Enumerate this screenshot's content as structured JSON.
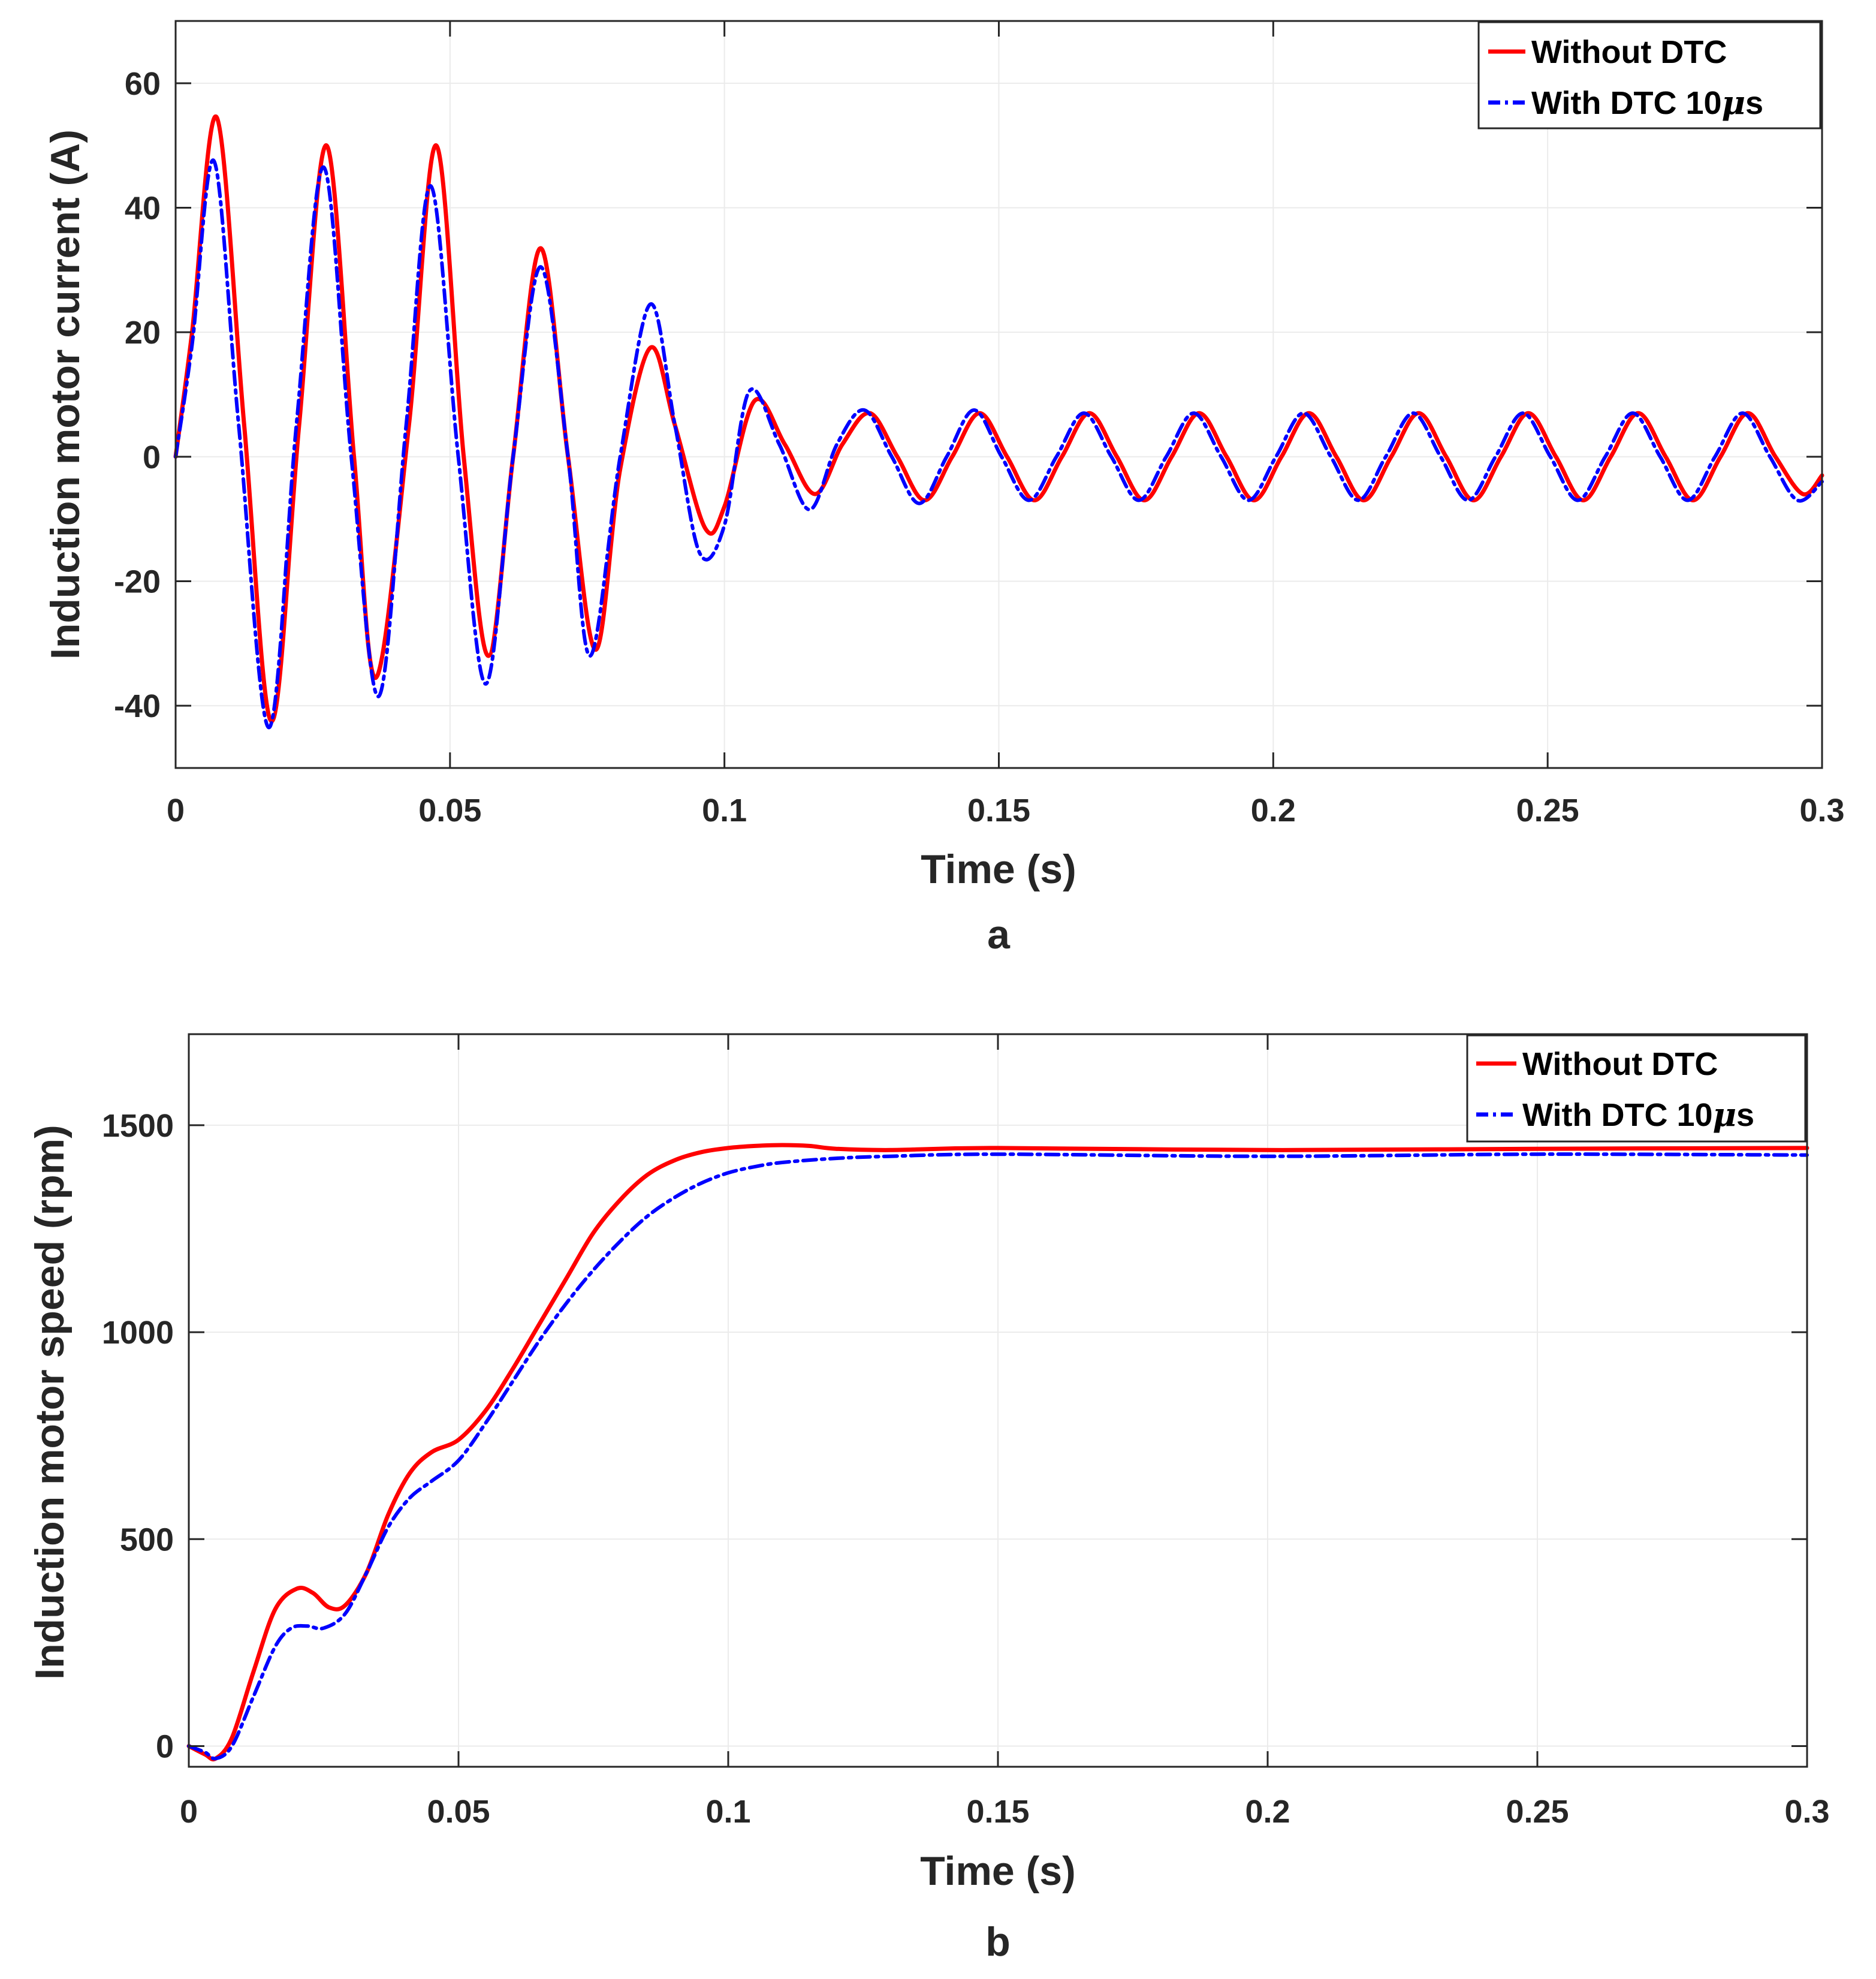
{
  "figure": {
    "captions": [
      "a",
      "b"
    ]
  },
  "colors": {
    "without_dtc": "#ff0000",
    "with_dtc": "#0000ff",
    "axis": "#262626",
    "grid": "#ebebeb"
  },
  "chart_data": [
    {
      "type": "line",
      "caption": "a",
      "title": "",
      "xlabel": "Time (s)",
      "ylabel": "Induction motor current (A)",
      "xlim": [
        0,
        0.3
      ],
      "ylim": [
        -50,
        70
      ],
      "xticks": [
        0,
        0.05,
        0.1,
        0.15,
        0.2,
        0.25,
        0.3
      ],
      "xtick_labels": [
        "0",
        "0.05",
        "0.1",
        "0.15",
        "0.2",
        "0.25",
        "0.3"
      ],
      "yticks": [
        -40,
        -20,
        0,
        20,
        40,
        60
      ],
      "ytick_labels": [
        "-40",
        "-20",
        "0",
        "20",
        "40",
        "60"
      ],
      "grid": true,
      "legend_position": "top-right",
      "legend": [
        "Without DTC",
        "With DTC 10"
      ],
      "legend_mu": "μ",
      "legend_mu_suffix": "s",
      "series": [
        {
          "name": "Without DTC",
          "style": "solid",
          "x": [
            0,
            0.003,
            0.0075,
            0.0125,
            0.0175,
            0.0225,
            0.0275,
            0.0325,
            0.0365,
            0.0425,
            0.0475,
            0.0525,
            0.057,
            0.0615,
            0.0665,
            0.0715,
            0.0765,
            0.081,
            0.0865,
            0.091,
            0.0965,
            0.1,
            0.1055,
            0.111,
            0.1165,
            0.1215,
            0.1265,
            0.1315,
            0.1365,
            0.1415,
            0.1465,
            0.1515,
            0.1565,
            0.1615,
            0.1665,
            0.1715,
            0.1765,
            0.1815,
            0.1865,
            0.1915,
            0.1965,
            0.2015,
            0.2065,
            0.2115,
            0.2165,
            0.2215,
            0.2265,
            0.2315,
            0.2365,
            0.2415,
            0.2465,
            0.2515,
            0.2565,
            0.2615,
            0.2665,
            0.2715,
            0.2765,
            0.2815,
            0.2865,
            0.2915,
            0.2965,
            0.3
          ],
          "values": [
            0,
            20,
            54.5,
            5,
            -42.5,
            5,
            50,
            0,
            -35.5,
            5,
            50,
            0,
            -32,
            0,
            33.5,
            0,
            -31,
            -2,
            17.5,
            5,
            -11.5,
            -8,
            9,
            2,
            -6,
            2,
            7,
            0,
            -7,
            0,
            7,
            0,
            -7,
            0,
            7,
            0,
            -7,
            0,
            7,
            0,
            -7,
            0,
            7,
            0,
            -7,
            0,
            7,
            0,
            -7,
            0,
            7,
            0,
            -7,
            0,
            7,
            0,
            -7,
            0,
            7,
            0,
            -6,
            -3
          ]
        },
        {
          "name": "With DTC 10μs",
          "style": "dashdot",
          "x": [
            0,
            0.003,
            0.007,
            0.0115,
            0.017,
            0.022,
            0.027,
            0.032,
            0.037,
            0.042,
            0.0465,
            0.0515,
            0.0565,
            0.0615,
            0.0665,
            0.0715,
            0.0755,
            0.081,
            0.0865,
            0.091,
            0.0955,
            0.1,
            0.1045,
            0.11,
            0.1155,
            0.1205,
            0.1255,
            0.1305,
            0.1355,
            0.1405,
            0.1455,
            0.1505,
            0.1555,
            0.1605,
            0.1655,
            0.1705,
            0.1755,
            0.1805,
            0.1855,
            0.1905,
            0.1955,
            0.2005,
            0.2055,
            0.2105,
            0.2155,
            0.2205,
            0.2255,
            0.2305,
            0.2355,
            0.2405,
            0.2455,
            0.2505,
            0.2555,
            0.2605,
            0.2655,
            0.2705,
            0.2755,
            0.2805,
            0.2855,
            0.2905,
            0.2955,
            0.3
          ],
          "values": [
            0,
            18,
            47.5,
            5,
            -43.5,
            5,
            46.5,
            0,
            -38.5,
            5,
            43.5,
            0,
            -36.5,
            0,
            30.5,
            0,
            -32,
            0,
            24.5,
            5,
            -15.5,
            -11,
            10.5,
            2,
            -8.5,
            2,
            7.5,
            0,
            -7.5,
            0,
            7.5,
            0,
            -7,
            0,
            7,
            0,
            -7,
            0,
            7,
            0,
            -7,
            0,
            7,
            0,
            -7,
            0,
            7,
            0,
            -7,
            0,
            7,
            0,
            -7,
            0,
            7,
            0,
            -7,
            0,
            7,
            0,
            -7,
            -4
          ]
        }
      ]
    },
    {
      "type": "line",
      "caption": "b",
      "title": "",
      "xlabel": "Time (s)",
      "ylabel": "Induction motor speed (rpm)",
      "xlim": [
        0,
        0.3
      ],
      "ylim": [
        -50,
        1720
      ],
      "xticks": [
        0,
        0.05,
        0.1,
        0.15,
        0.2,
        0.25,
        0.3
      ],
      "xtick_labels": [
        "0",
        "0.05",
        "0.1",
        "0.15",
        "0.2",
        "0.25",
        "0.3"
      ],
      "yticks": [
        0,
        500,
        1000,
        1500
      ],
      "ytick_labels": [
        "0",
        "500",
        "1000",
        "1500"
      ],
      "grid": true,
      "legend_position": "top-right",
      "legend": [
        "Without DTC",
        "With DTC 10"
      ],
      "legend_mu": "μ",
      "legend_mu_suffix": "s",
      "series": [
        {
          "name": "Without DTC",
          "style": "solid",
          "x": [
            0,
            0.003,
            0.005,
            0.008,
            0.012,
            0.016,
            0.02,
            0.023,
            0.026,
            0.029,
            0.033,
            0.037,
            0.041,
            0.045,
            0.05,
            0.055,
            0.06,
            0.065,
            0.07,
            0.075,
            0.08,
            0.085,
            0.09,
            0.095,
            0.1,
            0.105,
            0.11,
            0.115,
            0.12,
            0.13,
            0.15,
            0.2,
            0.25,
            0.3
          ],
          "values": [
            0,
            -20,
            -30,
            20,
            180,
            330,
            380,
            370,
            335,
            340,
            420,
            560,
            660,
            710,
            740,
            810,
            910,
            1020,
            1130,
            1240,
            1320,
            1380,
            1415,
            1435,
            1445,
            1450,
            1452,
            1450,
            1443,
            1440,
            1445,
            1440,
            1443,
            1445
          ]
        },
        {
          "name": "With DTC 10μs",
          "style": "dashdot",
          "x": [
            0,
            0.003,
            0.005,
            0.008,
            0.012,
            0.016,
            0.019,
            0.022,
            0.025,
            0.029,
            0.033,
            0.037,
            0.041,
            0.045,
            0.05,
            0.055,
            0.06,
            0.065,
            0.07,
            0.075,
            0.08,
            0.085,
            0.09,
            0.095,
            0.1,
            0.105,
            0.11,
            0.12,
            0.13,
            0.15,
            0.2,
            0.25,
            0.3
          ],
          "values": [
            0,
            -15,
            -30,
            0,
            120,
            240,
            285,
            290,
            285,
            320,
            420,
            530,
            600,
            640,
            690,
            780,
            880,
            980,
            1070,
            1150,
            1220,
            1280,
            1325,
            1360,
            1385,
            1400,
            1410,
            1420,
            1425,
            1430,
            1425,
            1430,
            1428
          ]
        }
      ]
    }
  ]
}
